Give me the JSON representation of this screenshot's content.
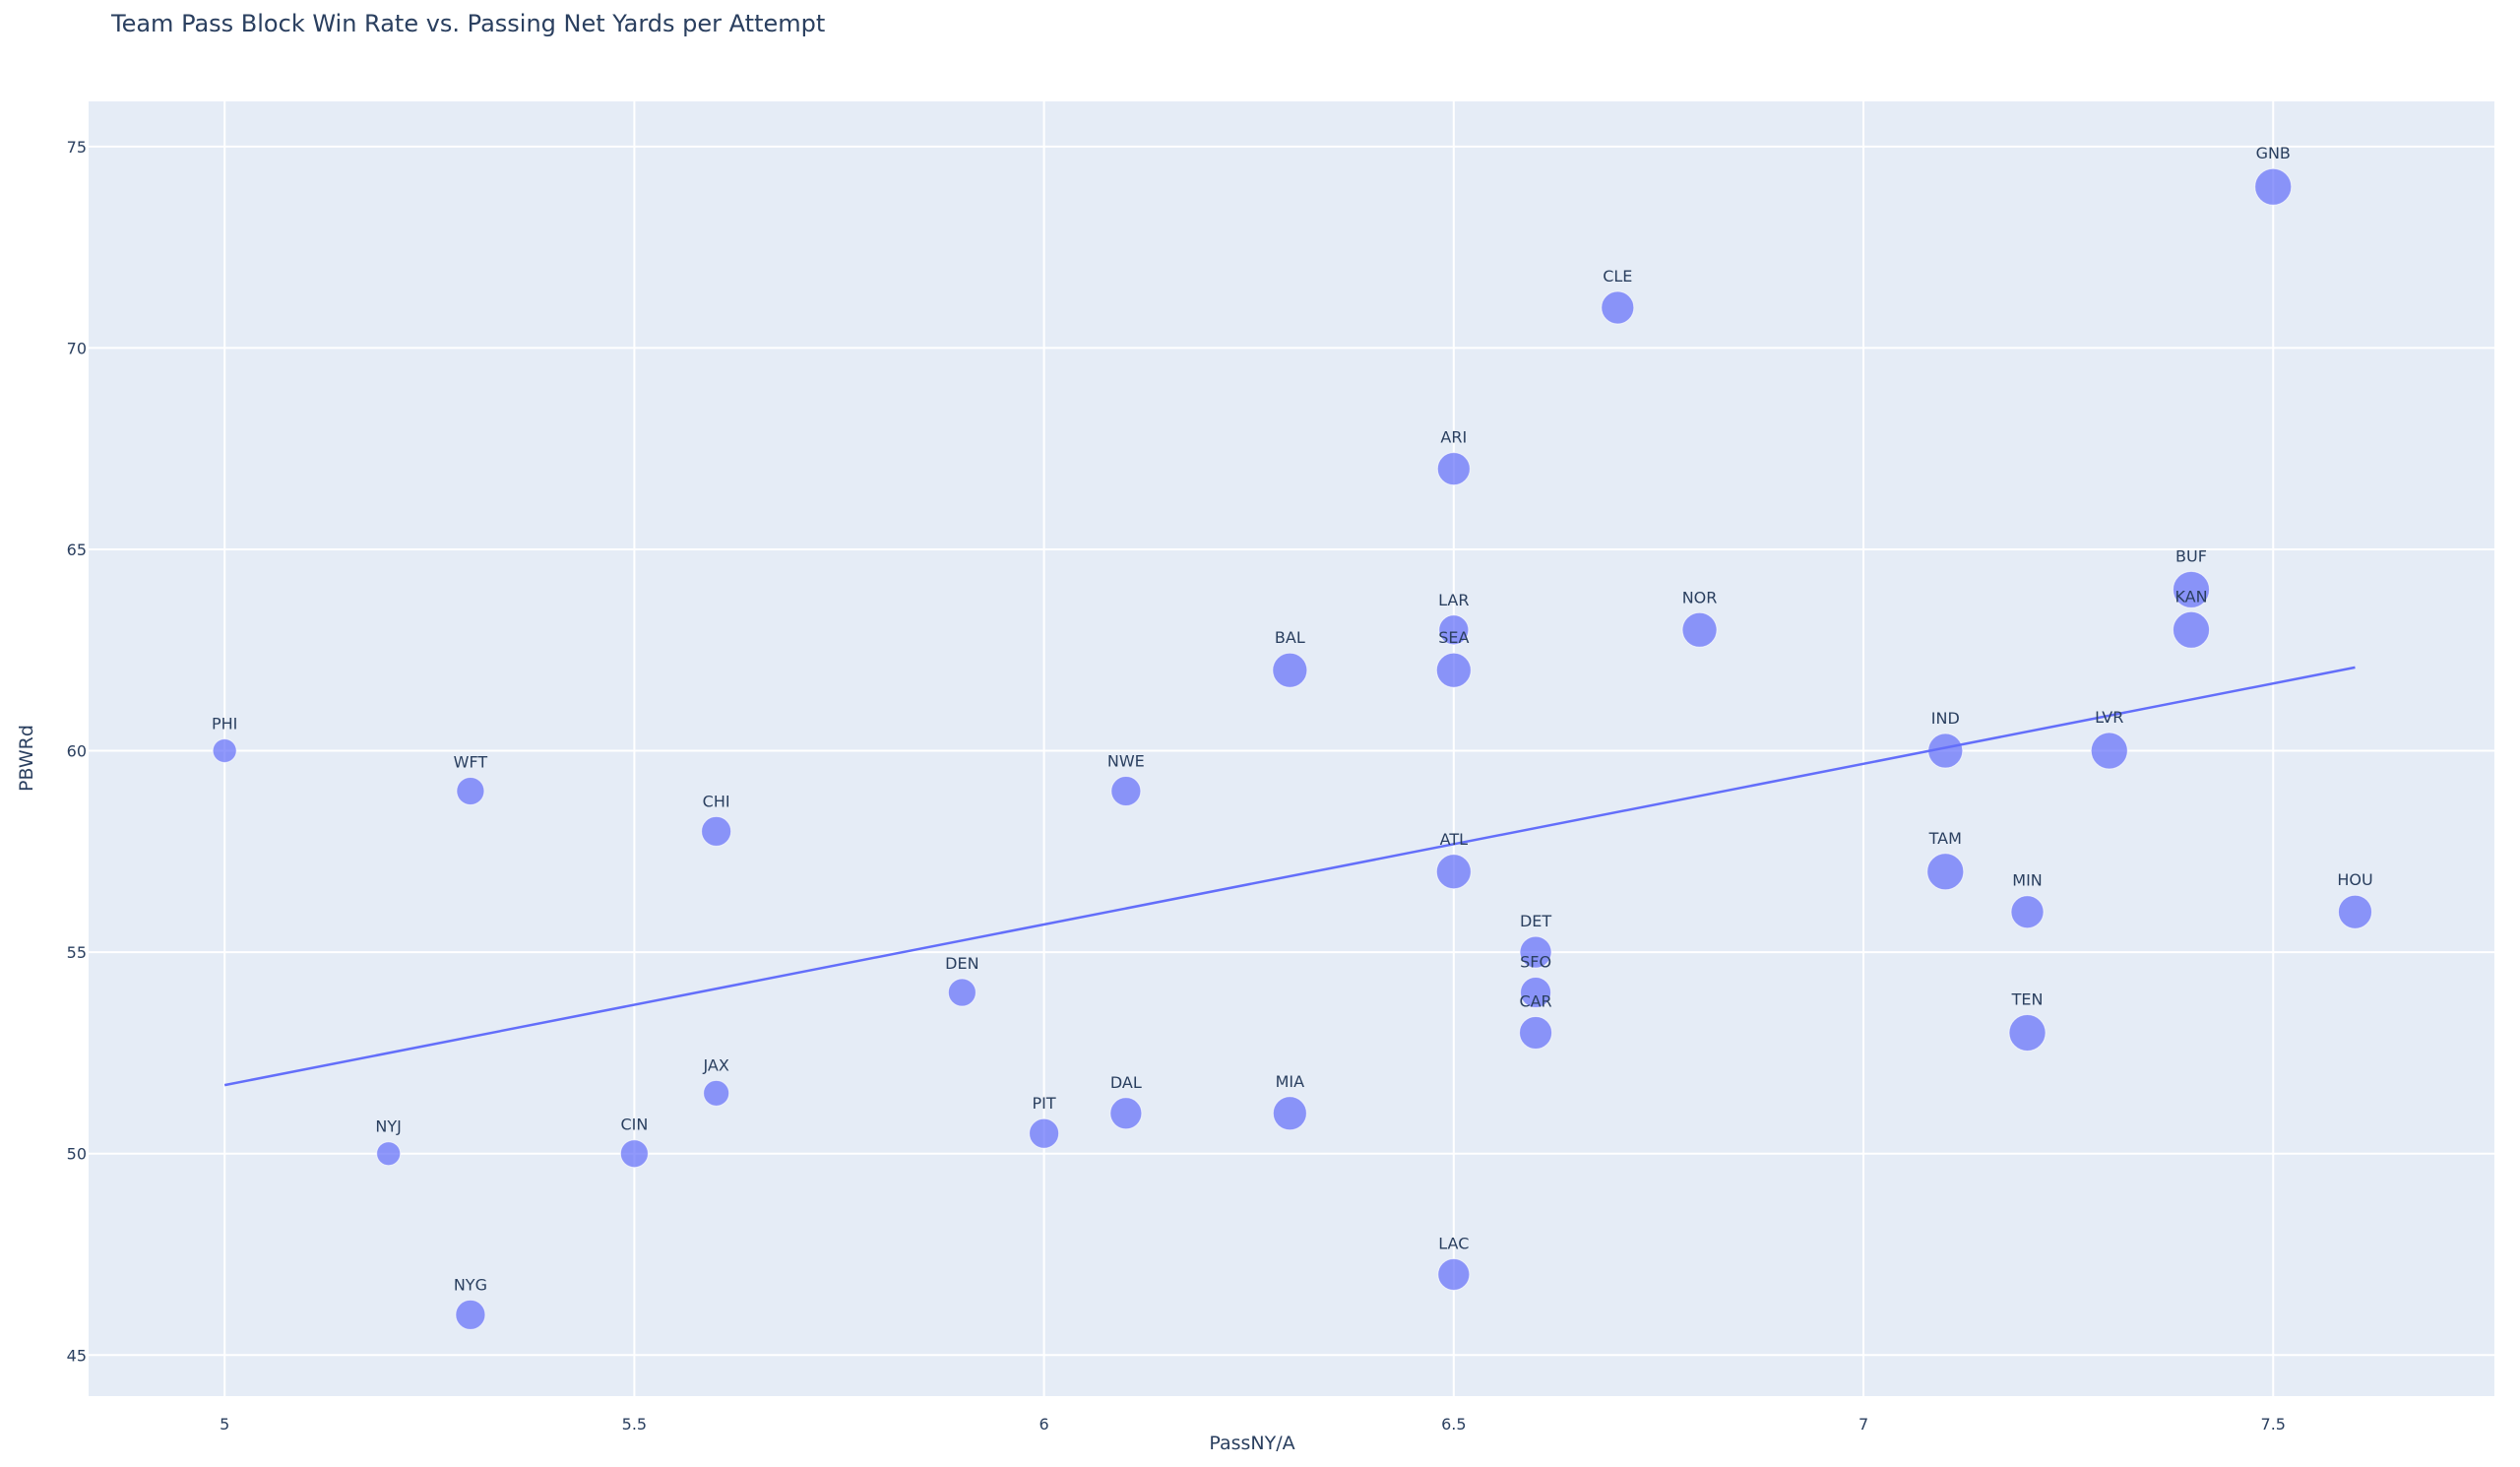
{
  "chart_data": {
    "type": "scatter",
    "title": "Team Pass Block Win Rate vs. Passing Net Yards per Attempt",
    "xlabel": "PassNY/A",
    "ylabel": "PBWRd",
    "xlim": [
      4.834,
      7.77
    ],
    "ylim": [
      43.98,
      76.12
    ],
    "xticks": [
      5,
      5.5,
      6,
      6.5,
      7,
      7.5
    ],
    "xtick_labels": [
      "5",
      "5.5",
      "6",
      "6.5",
      "7",
      "7.5"
    ],
    "yticks": [
      45,
      50,
      55,
      60,
      65,
      70,
      75
    ],
    "ytick_labels": [
      "45",
      "50",
      "55",
      "60",
      "65",
      "70",
      "75"
    ],
    "grid": true,
    "legend": false,
    "colors": {
      "plot_bg": "#e5ecf6",
      "grid": "#ffffff",
      "marker": "#636efa",
      "marker_opacity": 0.7,
      "trendline": "#636efa",
      "text": "#2a3f5f"
    },
    "series": [
      {
        "name": "Teams",
        "mode": "markers+text",
        "points": [
          {
            "team": "PHI",
            "x": 5.0,
            "y": 60,
            "size": 24
          },
          {
            "team": "NYJ",
            "x": 5.2,
            "y": 50,
            "size": 24
          },
          {
            "team": "WFT",
            "x": 5.3,
            "y": 59,
            "size": 28
          },
          {
            "team": "NYG",
            "x": 5.3,
            "y": 46,
            "size": 30
          },
          {
            "team": "CIN",
            "x": 5.5,
            "y": 50,
            "size": 28
          },
          {
            "team": "CHI",
            "x": 5.6,
            "y": 58,
            "size": 30
          },
          {
            "team": "JAX",
            "x": 5.6,
            "y": 51.5,
            "size": 26
          },
          {
            "team": "DEN",
            "x": 5.9,
            "y": 54,
            "size": 28
          },
          {
            "team": "PIT",
            "x": 6.0,
            "y": 50.5,
            "size": 30
          },
          {
            "team": "NWE",
            "x": 6.1,
            "y": 59,
            "size": 30
          },
          {
            "team": "DAL",
            "x": 6.1,
            "y": 51,
            "size": 32
          },
          {
            "team": "BAL",
            "x": 6.3,
            "y": 62,
            "size": 35
          },
          {
            "team": "MIA",
            "x": 6.3,
            "y": 51,
            "size": 34
          },
          {
            "team": "ARI",
            "x": 6.5,
            "y": 67,
            "size": 33
          },
          {
            "team": "LAR",
            "x": 6.5,
            "y": 63,
            "size": 30
          },
          {
            "team": "SEA",
            "x": 6.5,
            "y": 62,
            "size": 35
          },
          {
            "team": "ATL",
            "x": 6.5,
            "y": 57,
            "size": 35
          },
          {
            "team": "LAC",
            "x": 6.5,
            "y": 47,
            "size": 32
          },
          {
            "team": "DET",
            "x": 6.6,
            "y": 55,
            "size": 32
          },
          {
            "team": "SFO",
            "x": 6.6,
            "y": 54,
            "size": 31
          },
          {
            "team": "CAR",
            "x": 6.6,
            "y": 53,
            "size": 33
          },
          {
            "team": "CLE",
            "x": 6.7,
            "y": 71,
            "size": 33
          },
          {
            "team": "NOR",
            "x": 6.8,
            "y": 63,
            "size": 35
          },
          {
            "team": "IND",
            "x": 7.1,
            "y": 60,
            "size": 35
          },
          {
            "team": "TAM",
            "x": 7.1,
            "y": 57,
            "size": 37
          },
          {
            "team": "MIN",
            "x": 7.2,
            "y": 56,
            "size": 33
          },
          {
            "team": "TEN",
            "x": 7.2,
            "y": 53,
            "size": 37
          },
          {
            "team": "LVR",
            "x": 7.3,
            "y": 60,
            "size": 37
          },
          {
            "team": "BUF",
            "x": 7.4,
            "y": 64,
            "size": 37
          },
          {
            "team": "KAN",
            "x": 7.4,
            "y": 63,
            "size": 37
          },
          {
            "team": "GNB",
            "x": 7.5,
            "y": 74,
            "size": 37
          },
          {
            "team": "HOU",
            "x": 7.6,
            "y": 56,
            "size": 34
          }
        ]
      },
      {
        "name": "OLS trendline",
        "mode": "lines",
        "x": [
          5.0,
          7.6
        ],
        "y": [
          51.7,
          62.07
        ]
      }
    ]
  }
}
